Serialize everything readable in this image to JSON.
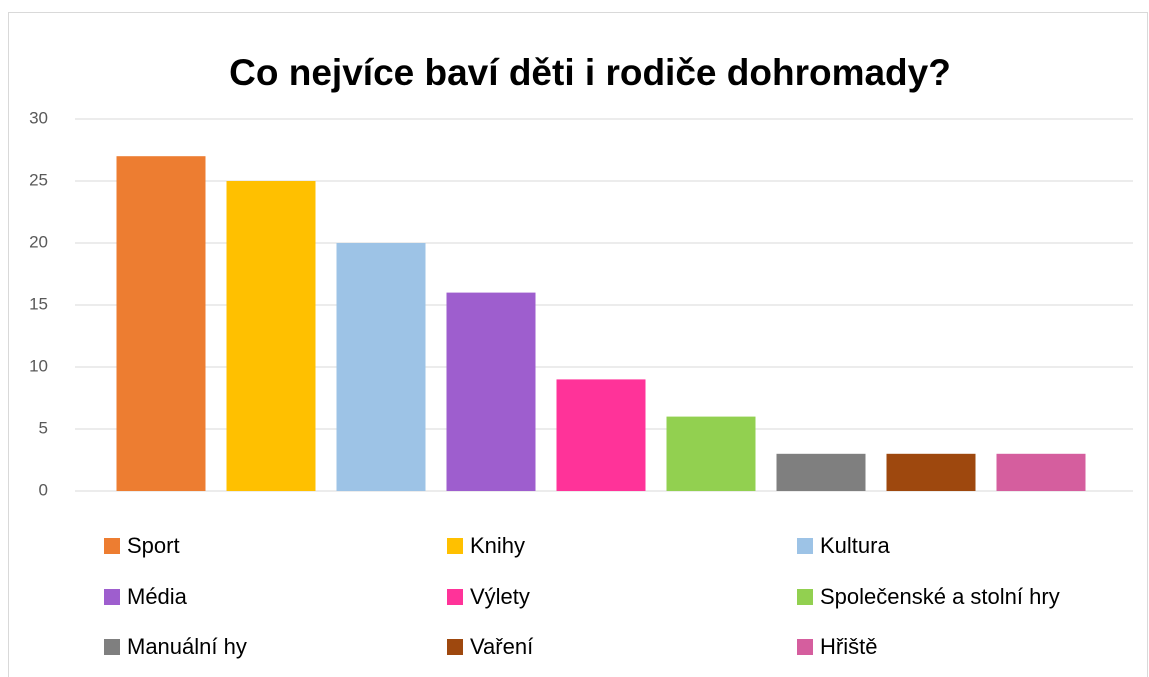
{
  "chart_data": {
    "type": "bar",
    "title": "Co nejvíce baví děti i rodiče dohromady?",
    "categories": [
      "Sport",
      "Knihy",
      "Kultura",
      "Média",
      "Výlety",
      "Společenské a stolní hry",
      "Manuální hy",
      "Vaření",
      "Hřiště"
    ],
    "values": [
      27,
      25,
      20,
      16,
      9,
      6,
      3,
      3,
      3
    ],
    "colors": [
      "#ED7D31",
      "#FFC000",
      "#9DC3E6",
      "#9E5ECE",
      "#FF3399",
      "#92D050",
      "#7F7F7F",
      "#9E480E",
      "#D55E9E"
    ],
    "ylim": [
      0,
      30
    ],
    "yticks": [
      0,
      5,
      10,
      15,
      20,
      25,
      30
    ],
    "grid": true,
    "legend": "bottom"
  }
}
